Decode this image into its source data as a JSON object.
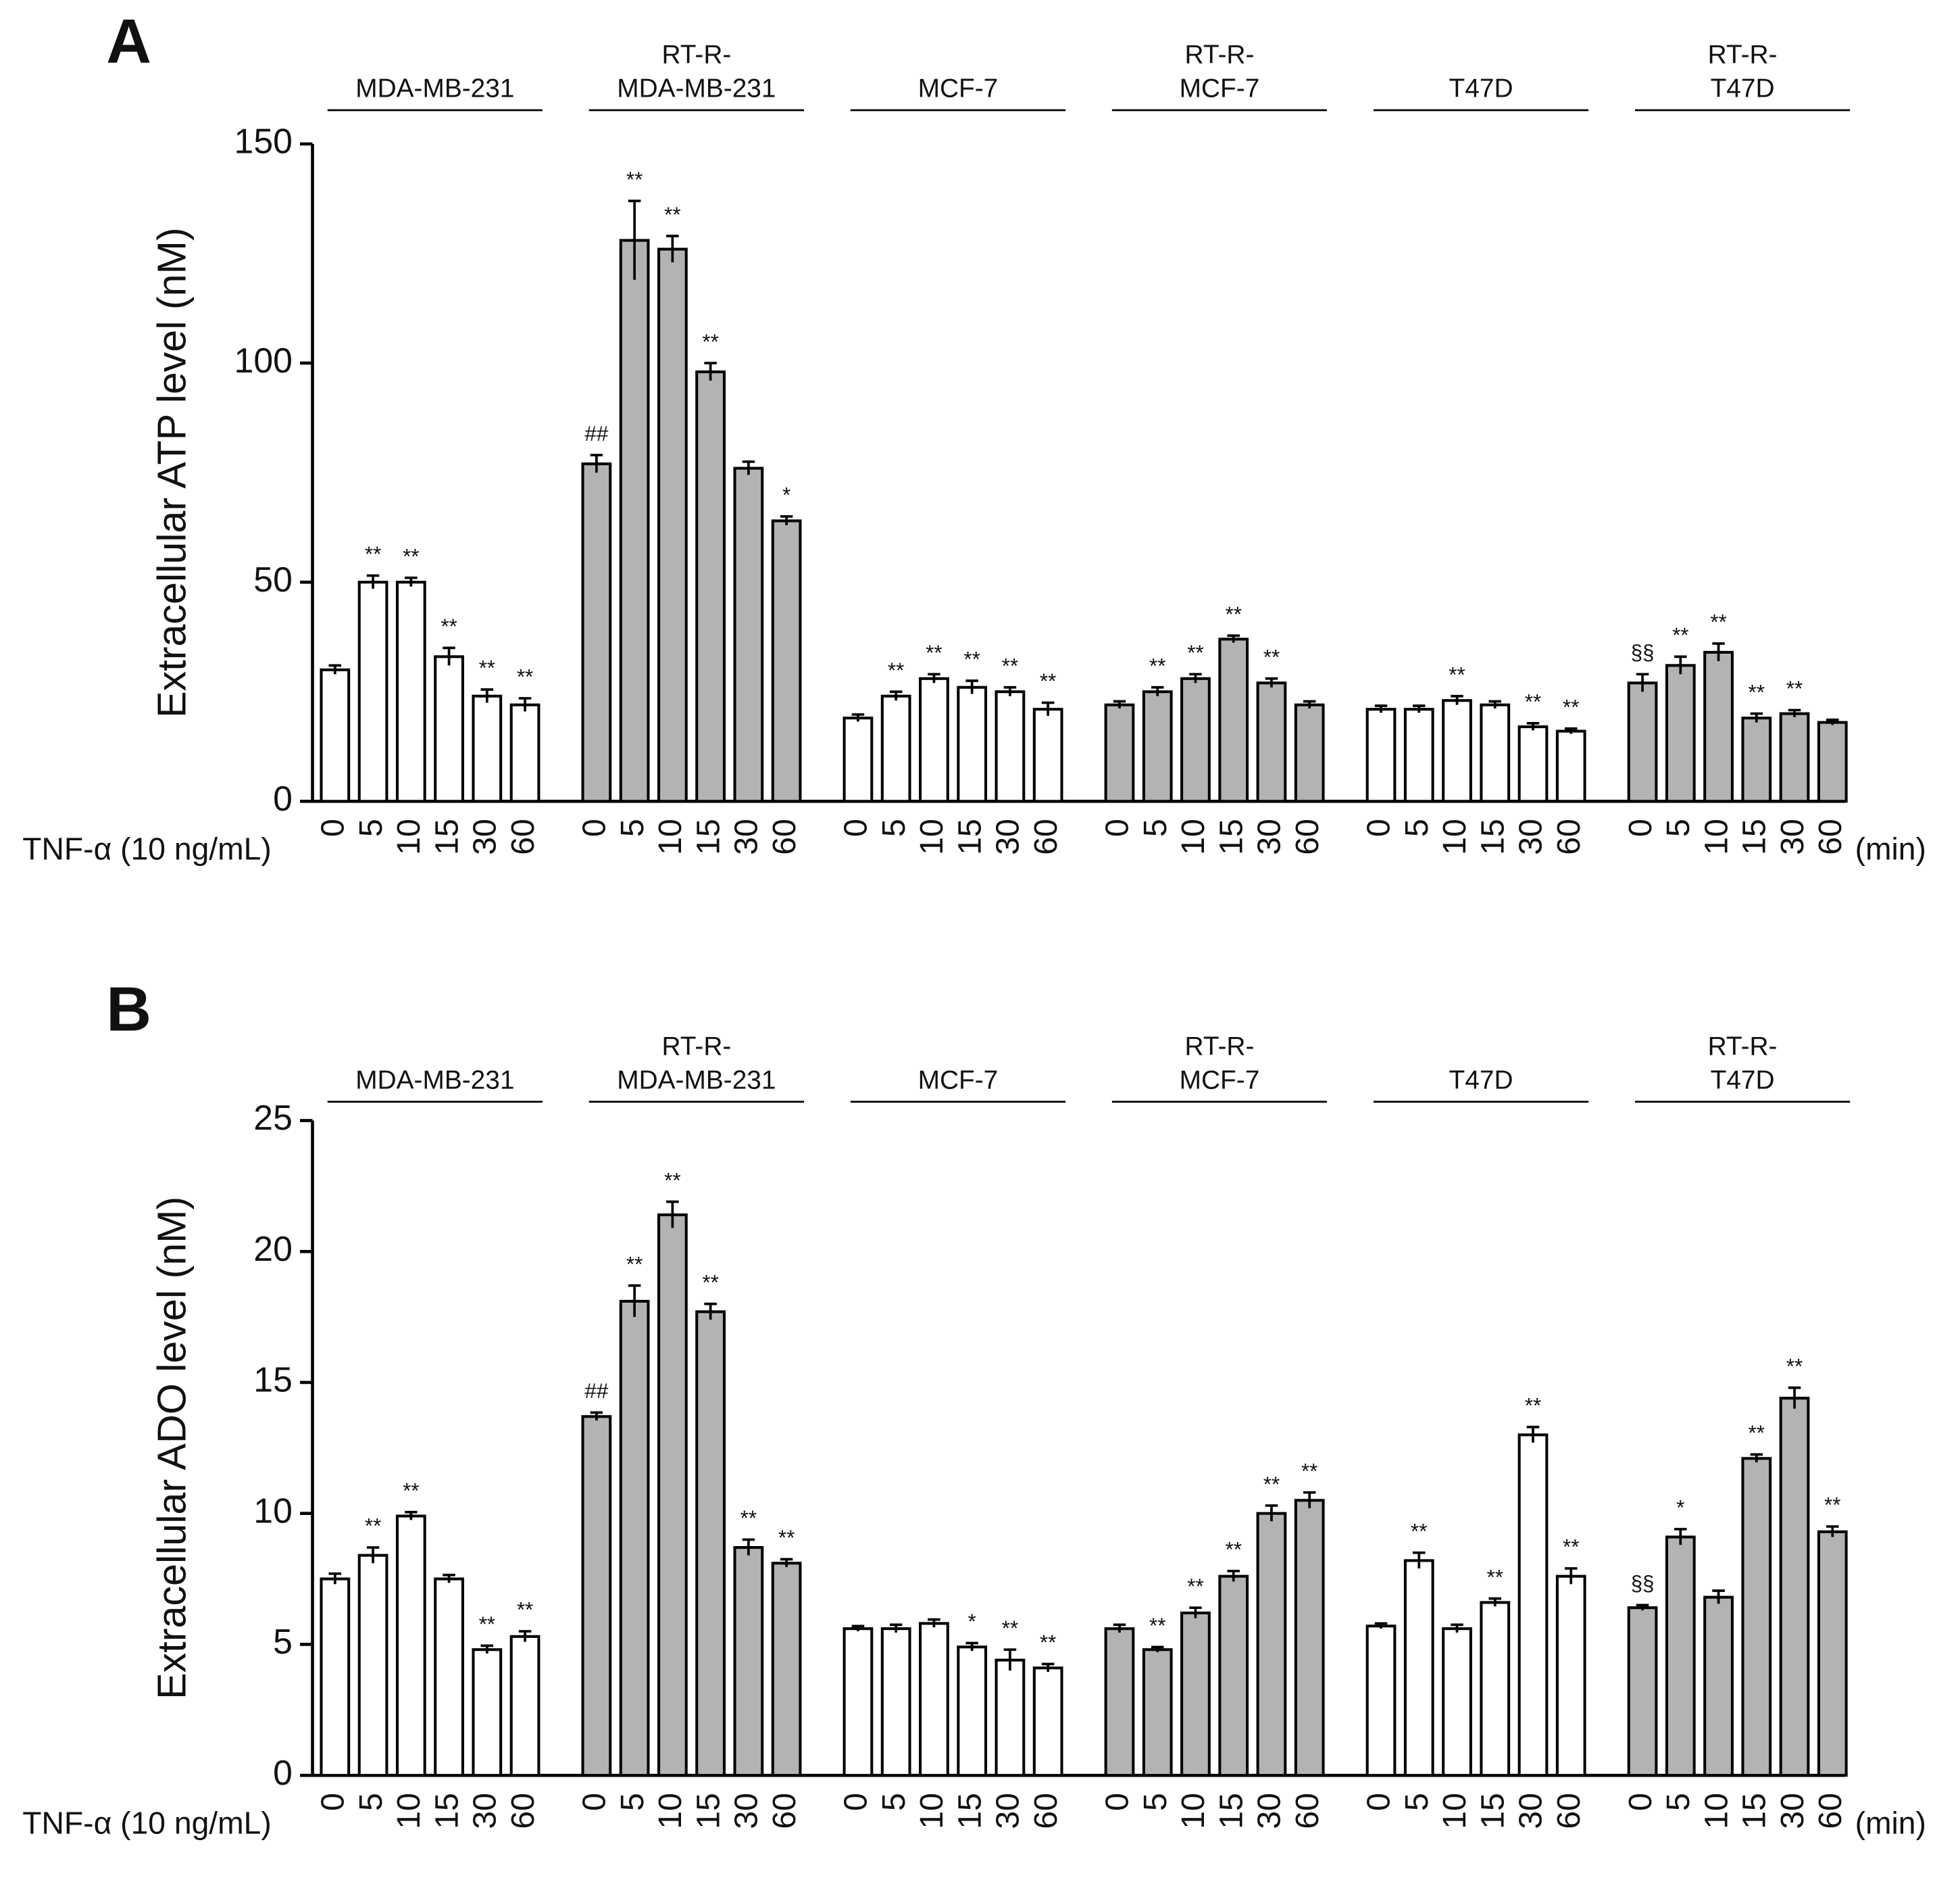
{
  "chart_data": [
    {
      "type": "bar",
      "panel_label": "A",
      "y_label": "Extracellular ATP level (nM)",
      "x_prefix": "TNF-α  (10 ng/mL)",
      "x_unit": "(min)",
      "ylim": [
        0,
        150
      ],
      "yticks": [
        0,
        50,
        100,
        150
      ],
      "categories": [
        "0",
        "5",
        "10",
        "15",
        "30",
        "60"
      ],
      "series": [
        {
          "name": [
            "MDA-MB-231"
          ],
          "color": "#ffffff",
          "values": [
            30,
            50,
            50,
            33,
            24,
            22
          ],
          "errors": [
            1,
            1.5,
            1,
            2,
            1.5,
            1.5
          ],
          "significance": [
            null,
            "**",
            "**",
            "**",
            "**",
            "**"
          ]
        },
        {
          "name": [
            "RT-R-",
            "MDA-MB-231"
          ],
          "color": "#b3b3b3",
          "values": [
            77,
            128,
            126,
            98,
            76,
            64
          ],
          "errors": [
            2,
            9,
            3,
            2,
            1.5,
            1
          ],
          "significance": [
            "##",
            "**",
            "**",
            "**",
            null,
            "*"
          ]
        },
        {
          "name": [
            "MCF-7"
          ],
          "color": "#ffffff",
          "values": [
            19,
            24,
            28,
            26,
            25,
            21
          ],
          "errors": [
            0.8,
            1,
            1,
            1.5,
            1,
            1.5
          ],
          "significance": [
            null,
            "**",
            "**",
            "**",
            "**",
            "**"
          ]
        },
        {
          "name": [
            "RT-R-",
            "MCF-7"
          ],
          "color": "#b3b3b3",
          "values": [
            22,
            25,
            28,
            37,
            27,
            22
          ],
          "errors": [
            0.8,
            1,
            1,
            0.8,
            1,
            0.8
          ],
          "significance": [
            null,
            "**",
            "**",
            "**",
            "**",
            null
          ]
        },
        {
          "name": [
            "T47D"
          ],
          "color": "#ffffff",
          "values": [
            21,
            21,
            23,
            22,
            17,
            16
          ],
          "errors": [
            0.8,
            0.8,
            1,
            0.8,
            0.8,
            0.6
          ],
          "significance": [
            null,
            null,
            "**",
            null,
            "**",
            "**"
          ]
        },
        {
          "name": [
            "RT-R-",
            "T47D"
          ],
          "color": "#b3b3b3",
          "values": [
            27,
            31,
            34,
            19,
            20,
            18
          ],
          "errors": [
            2,
            2,
            2,
            1,
            0.8,
            0.6
          ],
          "significance": [
            "§§",
            "**",
            "**",
            "**",
            "**",
            null
          ]
        }
      ]
    },
    {
      "type": "bar",
      "panel_label": "B",
      "y_label": "Extracellular ADO level (nM)",
      "x_prefix": "TNF-α  (10 ng/mL)",
      "x_unit": "(min)",
      "ylim": [
        0,
        25
      ],
      "yticks": [
        0,
        5,
        10,
        15,
        20,
        25
      ],
      "categories": [
        "0",
        "5",
        "10",
        "15",
        "30",
        "60"
      ],
      "series": [
        {
          "name": [
            "MDA-MB-231"
          ],
          "color": "#ffffff",
          "values": [
            7.5,
            8.4,
            9.9,
            7.5,
            4.8,
            5.3
          ],
          "errors": [
            0.2,
            0.3,
            0.15,
            0.15,
            0.15,
            0.2
          ],
          "significance": [
            null,
            "**",
            "**",
            null,
            "**",
            "**"
          ]
        },
        {
          "name": [
            "RT-R-",
            "MDA-MB-231"
          ],
          "color": "#b3b3b3",
          "values": [
            13.7,
            18.1,
            21.4,
            17.7,
            8.7,
            8.1
          ],
          "errors": [
            0.15,
            0.6,
            0.5,
            0.3,
            0.3,
            0.15
          ],
          "significance": [
            "##",
            "**",
            "**",
            "**",
            "**",
            "**"
          ]
        },
        {
          "name": [
            "MCF-7"
          ],
          "color": "#ffffff",
          "values": [
            5.6,
            5.6,
            5.8,
            4.9,
            4.4,
            4.1
          ],
          "errors": [
            0.1,
            0.15,
            0.15,
            0.15,
            0.4,
            0.15
          ],
          "significance": [
            null,
            null,
            null,
            "*",
            "**",
            "**"
          ]
        },
        {
          "name": [
            "RT-R-",
            "MCF-7"
          ],
          "color": "#b3b3b3",
          "values": [
            5.6,
            4.8,
            6.2,
            7.6,
            10.0,
            10.5
          ],
          "errors": [
            0.15,
            0.1,
            0.2,
            0.2,
            0.3,
            0.3
          ],
          "significance": [
            null,
            "**",
            "**",
            "**",
            "**",
            "**"
          ]
        },
        {
          "name": [
            "T47D"
          ],
          "color": "#ffffff",
          "values": [
            5.7,
            8.2,
            5.6,
            6.6,
            13.0,
            7.6
          ],
          "errors": [
            0.1,
            0.3,
            0.15,
            0.15,
            0.3,
            0.3
          ],
          "significance": [
            null,
            "**",
            null,
            "**",
            "**",
            "**"
          ]
        },
        {
          "name": [
            "RT-R-",
            "T47D"
          ],
          "color": "#b3b3b3",
          "values": [
            6.4,
            9.1,
            6.8,
            12.1,
            14.4,
            9.3
          ],
          "errors": [
            0.1,
            0.3,
            0.25,
            0.15,
            0.4,
            0.2
          ],
          "significance": [
            "§§",
            "*",
            null,
            "**",
            "**",
            "**"
          ]
        }
      ]
    }
  ]
}
